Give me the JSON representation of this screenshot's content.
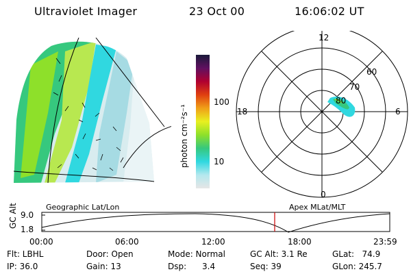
{
  "header": {
    "instrument": "Ultraviolet Imager",
    "date": "23 Oct 00",
    "time": "16:06:02 UT"
  },
  "left_panel": {
    "caption": "Geographic Lat/Lon"
  },
  "colorbar": {
    "unit_label": "photon cm⁻²s⁻¹",
    "ticks": [
      "100",
      "10"
    ],
    "scale": "log",
    "colors": [
      "#e6e6e6",
      "#b4e8ee",
      "#30d8e0",
      "#36c87e",
      "#8ee02a",
      "#e8f020",
      "#f0a018",
      "#e04010",
      "#b00030",
      "#601060",
      "#1a1a3a"
    ]
  },
  "polar_panel": {
    "caption": "Apex MLat/MLT",
    "mlt_labels": [
      "12",
      "18",
      "6",
      "0"
    ],
    "lat_labels": [
      "60",
      "70",
      "80"
    ]
  },
  "altitude_plot": {
    "ylabel": "GC Alt",
    "yticks": [
      "9.0",
      "1.8"
    ],
    "xticks": [
      "00:00",
      "06:00",
      "12:00",
      "18:00",
      "23:59"
    ],
    "marker_color": "#cc0000"
  },
  "footer": {
    "col1": [
      "Flt: LBHL",
      "IP: 36.0"
    ],
    "col2": [
      "Door: Open",
      "Gain: 13"
    ],
    "col3": [
      "Mode: Normal",
      "Dsp:      3.4"
    ],
    "col4": [
      "GC Alt: 3.1 Re",
      "Seq: 39"
    ],
    "col5": [
      "GLat:   74.9",
      "GLon: 245.7"
    ]
  }
}
